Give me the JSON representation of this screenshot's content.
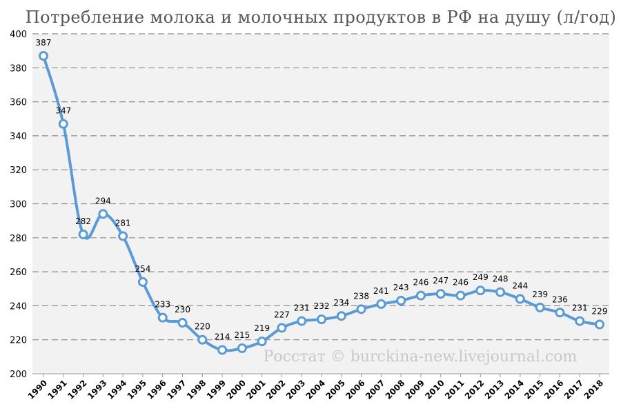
{
  "chart_data": {
    "type": "line",
    "title": "Потребление молока и молочных продуктов в РФ на душу (л/год)",
    "categories": [
      "1990",
      "1991",
      "1992",
      "1993",
      "1994",
      "1995",
      "1996",
      "1997",
      "1998",
      "1999",
      "2000",
      "2001",
      "2002",
      "2003",
      "2004",
      "2005",
      "2006",
      "2007",
      "2008",
      "2009",
      "2010",
      "2011",
      "2012",
      "2013",
      "2014",
      "2015",
      "2016",
      "2017",
      "2018"
    ],
    "values": [
      387,
      347,
      282,
      294,
      281,
      254,
      233,
      230,
      220,
      214,
      215,
      219,
      227,
      231,
      232,
      234,
      238,
      241,
      243,
      246,
      247,
      246,
      249,
      248,
      244,
      239,
      236,
      231,
      229
    ],
    "y_ticks": [
      "200",
      "220",
      "240",
      "260",
      "280",
      "300",
      "320",
      "340",
      "360",
      "380",
      "400"
    ],
    "ylim": [
      200,
      400
    ],
    "grid": true,
    "line_color": "#5b9bd5",
    "plot_background": "#f2f2f2",
    "watermark": "Росстат © burckina-new.livejournal.com"
  }
}
